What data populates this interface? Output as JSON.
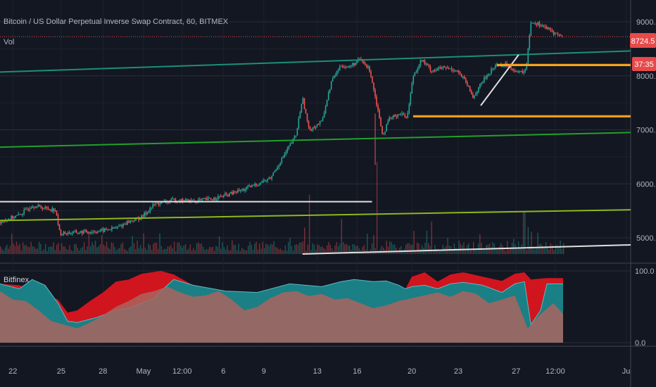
{
  "header": {
    "symbol_title": "Bitcoin / US Dollar Perpetual Inverse Swap Contract, 60, BITMEX",
    "volume_label": "Vol"
  },
  "lower_pane": {
    "label": "Bitfinex"
  },
  "price_badge": {
    "value": "8724.5",
    "timer": "37:35",
    "color": "#e8494a"
  },
  "colors": {
    "background": "#131722",
    "grid": "#2a2e39",
    "candle_up": "#26a69a",
    "candle_down": "#ef5350",
    "teal_line": "#1b8f7a",
    "green_line": "#21a12a",
    "olive_line": "#8db81a",
    "white_line": "#e0e0e0",
    "orange_line": "#f7a21b",
    "osc_red": "#d0151f",
    "osc_teal": "#1b7f86",
    "osc_pink": "#a9645e"
  },
  "chart_data": [
    {
      "type": "candlestick",
      "title": "Bitcoin / US Dollar Perpetual Inverse Swap Contract, 60, BITMEX",
      "y_ticks": [
        "9000.0",
        "8000.0",
        "7000.0",
        "6000.0",
        "5000.0"
      ],
      "ylim": [
        4700,
        9150
      ],
      "x_ticks": [
        "22",
        "25",
        "28",
        "May",
        "12:00",
        "6",
        "9",
        "13",
        "16",
        "20",
        "23",
        "27",
        "12:00",
        "Ju"
      ],
      "last_price": 8724.5,
      "price_path": [
        [
          0,
          5300
        ],
        [
          3,
          5420
        ],
        [
          5,
          5600
        ],
        [
          7,
          5550
        ],
        [
          8.6,
          5520
        ],
        [
          9.3,
          5080
        ],
        [
          12,
          5100
        ],
        [
          15,
          5120
        ],
        [
          18,
          5180
        ],
        [
          20,
          5300
        ],
        [
          22,
          5380
        ],
        [
          24,
          5620
        ],
        [
          27,
          5700
        ],
        [
          30,
          5680
        ],
        [
          33,
          5720
        ],
        [
          36,
          5820
        ],
        [
          38,
          5900
        ],
        [
          40,
          6000
        ],
        [
          42,
          6100
        ],
        [
          44,
          6500
        ],
        [
          46,
          6900
        ],
        [
          47,
          7600
        ],
        [
          48,
          7000
        ],
        [
          50,
          7150
        ],
        [
          51.5,
          7900
        ],
        [
          53,
          8200
        ],
        [
          54,
          8150
        ],
        [
          56,
          8300
        ],
        [
          57.5,
          8100
        ],
        [
          58.5,
          7500
        ],
        [
          59.5,
          6900
        ],
        [
          60.5,
          7200
        ],
        [
          62,
          7300
        ],
        [
          63.3,
          7250
        ],
        [
          64.2,
          8000
        ],
        [
          65.5,
          8300
        ],
        [
          67,
          8100
        ],
        [
          69,
          8150
        ],
        [
          71,
          8100
        ],
        [
          72.3,
          7900
        ],
        [
          73.5,
          7600
        ],
        [
          75,
          7900
        ],
        [
          77,
          8200
        ],
        [
          79,
          8200
        ],
        [
          80.5,
          8050
        ],
        [
          81.7,
          8100
        ],
        [
          82.5,
          9000
        ],
        [
          84,
          8950
        ],
        [
          86,
          8800
        ],
        [
          87.5,
          8724.5
        ]
      ],
      "volume": {
        "label": "Vol",
        "spikes": [
          [
            45,
            5000
          ],
          [
            48,
            5800
          ],
          [
            53,
            5350
          ],
          [
            58.5,
            6400
          ],
          [
            67,
            5300
          ],
          [
            81.3,
            5500
          ],
          [
            82,
            5200
          ]
        ]
      },
      "trendlines": [
        {
          "name": "teal",
          "color": "#1b8f7a",
          "from": [
            0,
            8070
          ],
          "to": [
            98,
            8460
          ]
        },
        {
          "name": "green",
          "color": "#21a12a",
          "from": [
            0,
            6680
          ],
          "to": [
            98,
            6950
          ]
        },
        {
          "name": "olive",
          "color": "#8db81a",
          "from": [
            0,
            5320
          ],
          "to": [
            98,
            5520
          ]
        },
        {
          "name": "white-support",
          "color": "#e0e0e0",
          "from": [
            0,
            5670
          ],
          "to": [
            57.8,
            5670
          ]
        },
        {
          "name": "white-lower",
          "color": "#e0e0e0",
          "from": [
            47,
            4700
          ],
          "to": [
            98,
            4870
          ]
        },
        {
          "name": "white-rise",
          "color": "#e0e0e0",
          "from": [
            74.7,
            7450
          ],
          "to": [
            80.6,
            8390
          ]
        },
        {
          "name": "orange-high",
          "color": "#f7a21b",
          "from": [
            77.2,
            8200
          ],
          "to": [
            98,
            8200
          ]
        },
        {
          "name": "orange-low",
          "color": "#f7a21b",
          "from": [
            64.2,
            7250
          ],
          "to": [
            98,
            7250
          ]
        },
        {
          "name": "red-price-line",
          "color": "#e8494a",
          "from": [
            0,
            8724.5
          ],
          "to": [
            98,
            8724.5
          ]
        }
      ]
    },
    {
      "type": "area",
      "label": "Bitfinex",
      "y_ticks": [
        "100.0",
        "0.0"
      ],
      "ylim": [
        -5,
        105
      ],
      "series": [
        {
          "name": "",
          "color": "#d0151f",
          "points": [
            [
              0,
              82
            ],
            [
              3,
              80
            ],
            [
              6,
              70
            ],
            [
              9,
              60
            ],
            [
              10.5,
              42
            ],
            [
              12,
              45
            ],
            [
              14,
              58
            ],
            [
              16,
              70
            ],
            [
              18,
              85
            ],
            [
              20,
              88
            ],
            [
              22,
              96
            ],
            [
              25,
              100
            ],
            [
              27,
              95
            ],
            [
              30,
              80
            ],
            [
              35,
              72
            ],
            [
              40,
              70
            ],
            [
              45,
              82
            ],
            [
              50,
              78
            ],
            [
              53,
              85
            ],
            [
              55,
              88
            ],
            [
              58,
              85
            ],
            [
              60,
              86
            ],
            [
              62,
              80
            ],
            [
              63,
              75
            ],
            [
              64,
              92
            ],
            [
              66,
              98
            ],
            [
              68,
              85
            ],
            [
              70,
              95
            ],
            [
              72,
              98
            ],
            [
              75,
              92
            ],
            [
              78,
              86
            ],
            [
              80,
              96
            ],
            [
              81.5,
              98
            ],
            [
              82.5,
              88
            ],
            [
              85,
              90
            ],
            [
              87.5,
              90
            ]
          ]
        },
        {
          "name": "",
          "color": "#1b7f86",
          "points": [
            [
              0,
              82
            ],
            [
              3,
              75
            ],
            [
              5,
              88
            ],
            [
              7,
              80
            ],
            [
              9,
              55
            ],
            [
              10.5,
              30
            ],
            [
              12,
              28
            ],
            [
              15,
              35
            ],
            [
              18,
              45
            ],
            [
              20,
              48
            ],
            [
              22,
              55
            ],
            [
              24,
              62
            ],
            [
              25,
              72
            ],
            [
              27,
              88
            ],
            [
              30,
              80
            ],
            [
              35,
              72
            ],
            [
              40,
              70
            ],
            [
              45,
              82
            ],
            [
              50,
              78
            ],
            [
              53,
              85
            ],
            [
              55,
              88
            ],
            [
              58,
              85
            ],
            [
              60,
              86
            ],
            [
              62,
              80
            ],
            [
              63,
              75
            ],
            [
              64,
              78
            ],
            [
              66,
              80
            ],
            [
              68,
              75
            ],
            [
              70,
              82
            ],
            [
              72,
              84
            ],
            [
              75,
              80
            ],
            [
              78,
              70
            ],
            [
              80,
              82
            ],
            [
              81.5,
              85
            ],
            [
              82.5,
              25
            ],
            [
              84,
              45
            ],
            [
              85,
              82
            ],
            [
              87.5,
              82
            ]
          ]
        },
        {
          "name": "",
          "color": "#a9645e",
          "points": [
            [
              0,
              72
            ],
            [
              2,
              60
            ],
            [
              4,
              58
            ],
            [
              6,
              45
            ],
            [
              8,
              30
            ],
            [
              10,
              25
            ],
            [
              12,
              20
            ],
            [
              14,
              28
            ],
            [
              16,
              38
            ],
            [
              18,
              50
            ],
            [
              20,
              58
            ],
            [
              22,
              68
            ],
            [
              24,
              72
            ],
            [
              26,
              78
            ],
            [
              28,
              70
            ],
            [
              30,
              64
            ],
            [
              32,
              66
            ],
            [
              34,
              72
            ],
            [
              36,
              60
            ],
            [
              38,
              45
            ],
            [
              40,
              50
            ],
            [
              42,
              62
            ],
            [
              44,
              70
            ],
            [
              46,
              72
            ],
            [
              48,
              65
            ],
            [
              50,
              68
            ],
            [
              52,
              60
            ],
            [
              54,
              62
            ],
            [
              56,
              55
            ],
            [
              58,
              48
            ],
            [
              60,
              52
            ],
            [
              62,
              58
            ],
            [
              64,
              62
            ],
            [
              66,
              66
            ],
            [
              68,
              70
            ],
            [
              70,
              64
            ],
            [
              72,
              72
            ],
            [
              74,
              68
            ],
            [
              76,
              55
            ],
            [
              78,
              60
            ],
            [
              80,
              66
            ],
            [
              82,
              20
            ],
            [
              84,
              40
            ],
            [
              86,
              55
            ],
            [
              87.5,
              40
            ]
          ]
        }
      ]
    }
  ]
}
